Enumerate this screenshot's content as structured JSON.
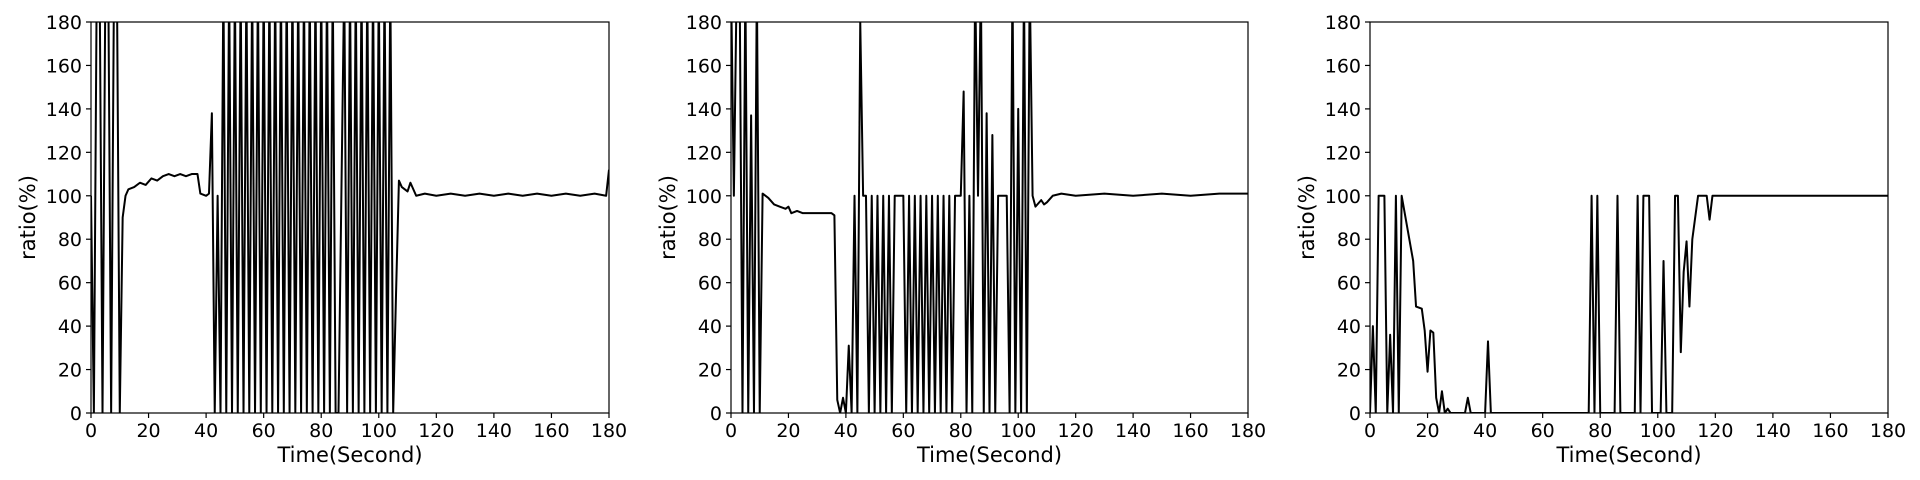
{
  "chart_data": [
    {
      "type": "line",
      "xlabel": "Time(Second)",
      "ylabel": "ratio(%)",
      "color": "#000000",
      "xlim": [
        0,
        180
      ],
      "ylim": [
        0,
        180
      ],
      "xticks": [
        0,
        20,
        40,
        60,
        80,
        100,
        120,
        140,
        160,
        180
      ],
      "yticks": [
        0,
        20,
        40,
        60,
        80,
        100,
        120,
        140,
        160,
        180
      ],
      "x": [
        0,
        1,
        2,
        3,
        4,
        5,
        6,
        7,
        8,
        9,
        10,
        11,
        12,
        13,
        15,
        17,
        19,
        21,
        23,
        25,
        27,
        29,
        31,
        33,
        35,
        37,
        38,
        40,
        41,
        42,
        43,
        44,
        45,
        46,
        47,
        48,
        49,
        50,
        51,
        52,
        53,
        54,
        55,
        56,
        57,
        58,
        59,
        60,
        61,
        62,
        63,
        64,
        65,
        66,
        67,
        68,
        69,
        70,
        71,
        72,
        73,
        74,
        75,
        76,
        77,
        78,
        79,
        80,
        81,
        82,
        83,
        84,
        85,
        86,
        88,
        89,
        90,
        91,
        92,
        93,
        94,
        95,
        96,
        97,
        98,
        99,
        100,
        101,
        102,
        103,
        104,
        105,
        106,
        107,
        108,
        110,
        111,
        113,
        116,
        120,
        125,
        130,
        135,
        140,
        145,
        150,
        155,
        160,
        165,
        170,
        175,
        179,
        180
      ],
      "values": [
        100,
        0,
        200,
        200,
        0,
        200,
        200,
        0,
        200,
        200,
        0,
        90,
        100,
        103,
        104,
        106,
        105,
        108,
        107,
        109,
        110,
        109,
        110,
        109,
        110,
        110,
        101,
        100,
        101,
        138,
        0,
        100,
        0,
        200,
        0,
        200,
        0,
        200,
        0,
        200,
        0,
        200,
        0,
        200,
        0,
        200,
        0,
        200,
        0,
        200,
        0,
        200,
        0,
        200,
        0,
        200,
        0,
        200,
        0,
        200,
        0,
        200,
        0,
        200,
        0,
        200,
        0,
        200,
        0,
        200,
        0,
        200,
        0,
        0,
        200,
        0,
        200,
        0,
        200,
        0,
        200,
        0,
        200,
        0,
        200,
        0,
        200,
        0,
        200,
        0,
        200,
        0,
        55,
        107,
        104,
        102,
        106,
        100,
        101,
        100,
        101,
        100,
        101,
        100,
        101,
        100,
        101,
        100,
        101,
        100,
        101,
        100,
        112
      ]
    },
    {
      "type": "line",
      "xlabel": "Time(Second)",
      "ylabel": "ratio(%)",
      "color": "#000000",
      "xlim": [
        0,
        180
      ],
      "ylim": [
        0,
        180
      ],
      "xticks": [
        0,
        20,
        40,
        60,
        80,
        100,
        120,
        140,
        160,
        180
      ],
      "yticks": [
        0,
        20,
        40,
        60,
        80,
        100,
        120,
        140,
        160,
        180
      ],
      "x": [
        0,
        1,
        2,
        3,
        4,
        5,
        6,
        7,
        8,
        9,
        10,
        11,
        13,
        15,
        17,
        19,
        20,
        21,
        23,
        25,
        30,
        35,
        36,
        37,
        38,
        39,
        40,
        41,
        42,
        43,
        44,
        45,
        46,
        47,
        48,
        49,
        50,
        51,
        52,
        53,
        54,
        55,
        56,
        57,
        60,
        61,
        62,
        63,
        64,
        65,
        66,
        67,
        68,
        69,
        70,
        71,
        72,
        73,
        74,
        75,
        76,
        77,
        78,
        80,
        81,
        82,
        83,
        84,
        85,
        86,
        87,
        88,
        89,
        90,
        91,
        92,
        93,
        96,
        97,
        98,
        99,
        100,
        101,
        102,
        103,
        104,
        105,
        106,
        108,
        109,
        110,
        112,
        115,
        120,
        130,
        140,
        150,
        160,
        170,
        180
      ],
      "values": [
        200,
        100,
        200,
        200,
        0,
        200,
        0,
        137,
        0,
        200,
        0,
        101,
        99,
        96,
        95,
        94,
        95,
        92,
        93,
        92,
        92,
        92,
        91,
        6,
        0,
        7,
        0,
        31,
        0,
        100,
        0,
        180,
        100,
        100,
        0,
        100,
        0,
        100,
        0,
        100,
        0,
        100,
        0,
        100,
        100,
        0,
        100,
        0,
        100,
        0,
        100,
        0,
        100,
        0,
        100,
        0,
        100,
        0,
        100,
        0,
        100,
        0,
        100,
        100,
        148,
        0,
        100,
        0,
        200,
        100,
        200,
        0,
        138,
        0,
        128,
        0,
        100,
        100,
        0,
        200,
        0,
        140,
        0,
        200,
        0,
        200,
        100,
        95,
        98,
        96,
        97,
        100,
        101,
        100,
        101,
        100,
        101,
        100,
        101,
        101
      ]
    },
    {
      "type": "line",
      "xlabel": "Time(Second)",
      "ylabel": "ratio(%)",
      "color": "#000000",
      "xlim": [
        0,
        180
      ],
      "ylim": [
        0,
        180
      ],
      "xticks": [
        0,
        20,
        40,
        60,
        80,
        100,
        120,
        140,
        160,
        180
      ],
      "yticks": [
        0,
        20,
        40,
        60,
        80,
        100,
        120,
        140,
        160,
        180
      ],
      "x": [
        0,
        1,
        2,
        3,
        4,
        5,
        6,
        7,
        8,
        9,
        10,
        11,
        15,
        16,
        18,
        19,
        20,
        21,
        22,
        23,
        24,
        25,
        26,
        27,
        28,
        30,
        33,
        34,
        35,
        40,
        41,
        42,
        50,
        76,
        77,
        78,
        79,
        80,
        85,
        86,
        87,
        92,
        93,
        94,
        95,
        97,
        98,
        101,
        102,
        103,
        105,
        106,
        107,
        108,
        109,
        110,
        111,
        112,
        113,
        114,
        117,
        118,
        119,
        120,
        150,
        180
      ],
      "values": [
        0,
        40,
        0,
        100,
        100,
        100,
        0,
        36,
        0,
        100,
        0,
        100,
        70,
        49,
        48,
        38,
        19,
        38,
        37,
        7,
        0,
        10,
        0,
        2,
        0,
        0,
        0,
        7,
        0,
        0,
        33,
        0,
        0,
        0,
        100,
        0,
        100,
        0,
        0,
        100,
        0,
        0,
        100,
        0,
        100,
        100,
        0,
        0,
        70,
        0,
        0,
        100,
        100,
        28,
        65,
        79,
        49,
        80,
        90,
        100,
        100,
        89,
        100,
        100,
        100,
        100
      ]
    }
  ]
}
